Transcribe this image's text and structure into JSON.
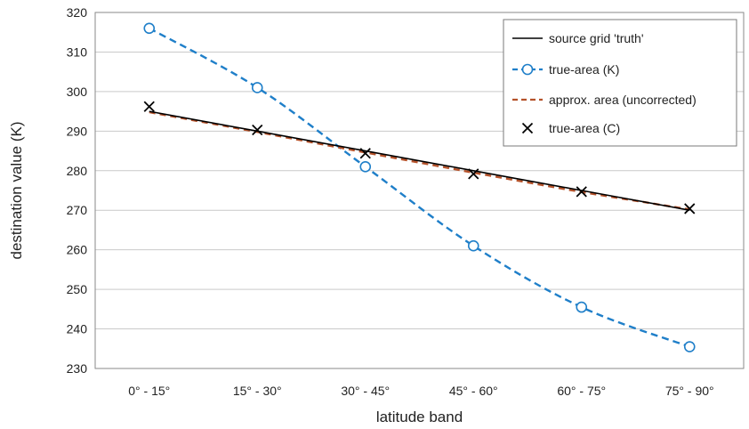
{
  "chart_data": {
    "type": "line",
    "xlabel": "latitude band",
    "ylabel": "destination value (K)",
    "categories": [
      "0° - 15°",
      "15° - 30°",
      "30° - 45°",
      "45° - 60°",
      "60° - 75°",
      "75° - 90°"
    ],
    "ylim": [
      230,
      320
    ],
    "yticks": [
      230,
      240,
      250,
      260,
      270,
      280,
      290,
      300,
      310,
      320
    ],
    "grid": true,
    "legend_position": "top-right",
    "series": [
      {
        "name": "source grid 'truth'",
        "values": [
          295,
          290,
          285,
          280,
          275,
          270
        ],
        "color": "#000000",
        "style": "solid",
        "marker": "none"
      },
      {
        "name": "true-area (K)",
        "values": [
          316,
          301,
          281,
          261,
          245.5,
          235.5
        ],
        "color": "#1f7fc9",
        "style": "dashed",
        "marker": "circle"
      },
      {
        "name": "approx. area (uncorrected)",
        "values": [
          294.8,
          289.8,
          284.6,
          279.5,
          274.6,
          270.2
        ],
        "color": "#b5522a",
        "style": "dashed",
        "marker": "none"
      },
      {
        "name": "true-area (C)",
        "values": [
          296.2,
          290.3,
          284.4,
          279.2,
          274.7,
          270.4
        ],
        "color": "#000000",
        "style": "none",
        "marker": "x"
      }
    ]
  }
}
